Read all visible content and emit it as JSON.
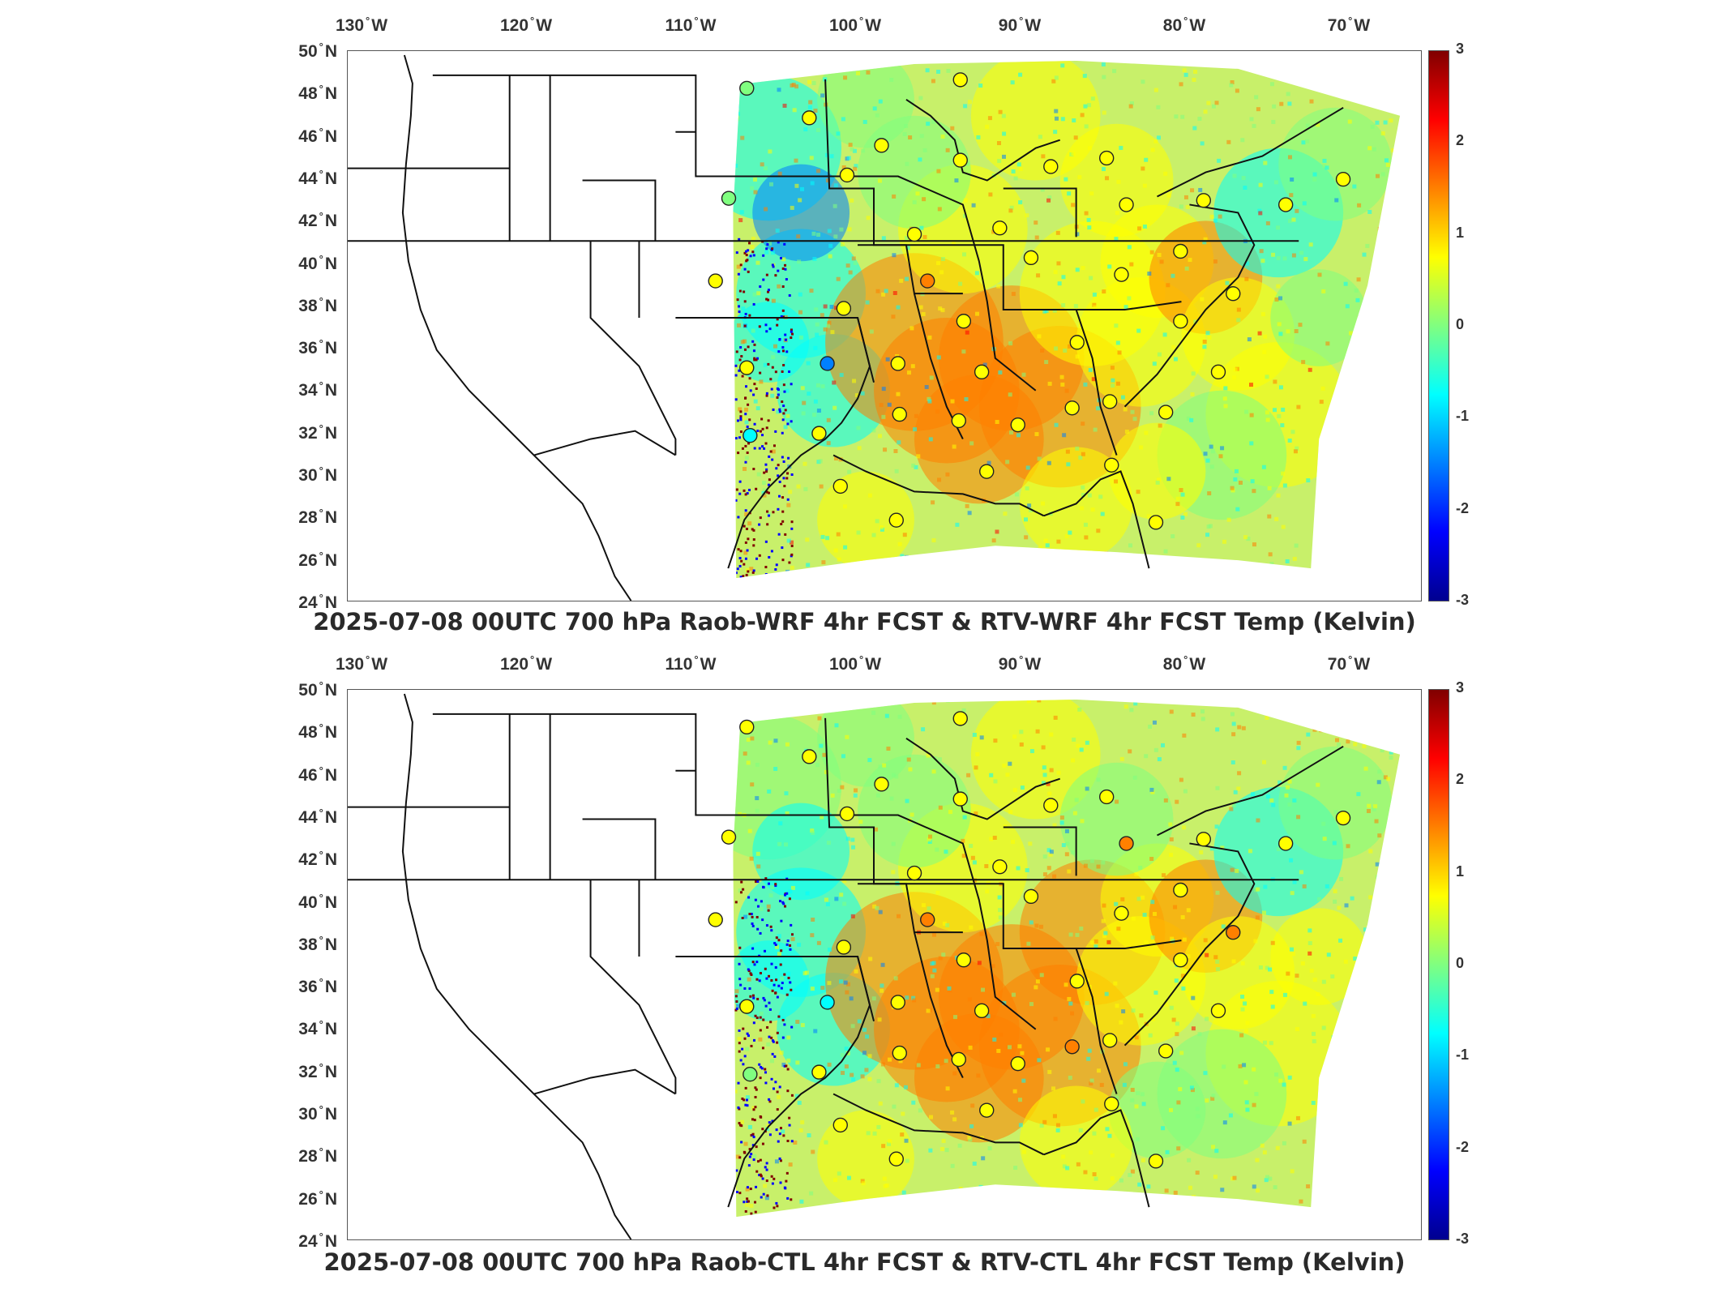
{
  "panels": [
    {
      "title": "2025-07-08 00UTC 700 hPa Raob-WRF 4hr FCST & RTV-WRF 4hr FCST Temp (Kelvin)"
    },
    {
      "title": "2025-07-08 00UTC 700 hPa Raob-CTL 4hr FCST & RTV-CTL 4hr FCST Temp (Kelvin)"
    }
  ],
  "lon_ticks": [
    {
      "deg": "130",
      "hem": "W"
    },
    {
      "deg": "120",
      "hem": "W"
    },
    {
      "deg": "110",
      "hem": "W"
    },
    {
      "deg": "100",
      "hem": "W"
    },
    {
      "deg": "90",
      "hem": "W"
    },
    {
      "deg": "80",
      "hem": "W"
    },
    {
      "deg": "70",
      "hem": "W"
    }
  ],
  "lat_ticks": [
    {
      "deg": "50",
      "hem": "N"
    },
    {
      "deg": "48",
      "hem": "N"
    },
    {
      "deg": "46",
      "hem": "N"
    },
    {
      "deg": "44",
      "hem": "N"
    },
    {
      "deg": "42",
      "hem": "N"
    },
    {
      "deg": "40",
      "hem": "N"
    },
    {
      "deg": "38",
      "hem": "N"
    },
    {
      "deg": "36",
      "hem": "N"
    },
    {
      "deg": "34",
      "hem": "N"
    },
    {
      "deg": "32",
      "hem": "N"
    },
    {
      "deg": "30",
      "hem": "N"
    },
    {
      "deg": "28",
      "hem": "N"
    },
    {
      "deg": "26",
      "hem": "N"
    },
    {
      "deg": "24",
      "hem": "N"
    }
  ],
  "colorbar": {
    "labels": [
      "3",
      "2",
      "1",
      "0",
      "-1",
      "-2",
      "-3"
    ],
    "range": [
      -3,
      3
    ],
    "colors": [
      "#00008f",
      "#0000ff",
      "#0080ff",
      "#00ffff",
      "#80ff80",
      "#ffff00",
      "#ff8000",
      "#ff0000",
      "#800000"
    ]
  },
  "stations": [
    {
      "lon": -106.6,
      "lat": 48.2,
      "v": 0.3
    },
    {
      "lon": -107.7,
      "lat": 43.0,
      "v": 0.3
    },
    {
      "lon": -108.5,
      "lat": 39.1,
      "v": 0.9
    },
    {
      "lon": -106.6,
      "lat": 35.0,
      "v": 0.9
    },
    {
      "lon": -106.4,
      "lat": 31.8,
      "v": -0.4
    },
    {
      "lon": -101.7,
      "lat": 35.2,
      "v": -1.2
    },
    {
      "lon": -102.2,
      "lat": 31.9,
      "v": 0.5
    },
    {
      "lon": -100.9,
      "lat": 29.4,
      "v": 0.4
    },
    {
      "lon": -97.5,
      "lat": 27.8,
      "v": 0.9
    },
    {
      "lon": -97.3,
      "lat": 32.8,
      "v": 1.0
    },
    {
      "lon": -97.4,
      "lat": 35.2,
      "v": 1.0
    },
    {
      "lon": -95.6,
      "lat": 39.1,
      "v": 1.6
    },
    {
      "lon": -100.7,
      "lat": 37.8,
      "v": 0.6
    },
    {
      "lon": -96.4,
      "lat": 41.3,
      "v": 0.9
    },
    {
      "lon": -100.5,
      "lat": 44.1,
      "v": 0.6
    },
    {
      "lon": -98.4,
      "lat": 45.5,
      "v": 0.6
    },
    {
      "lon": -102.8,
      "lat": 46.8,
      "v": 0.8
    },
    {
      "lon": -93.6,
      "lat": 44.8,
      "v": 0.9
    },
    {
      "lon": -91.2,
      "lat": 41.6,
      "v": 0.8
    },
    {
      "lon": -89.3,
      "lat": 40.2,
      "v": 0.9
    },
    {
      "lon": -93.4,
      "lat": 37.2,
      "v": 0.9
    },
    {
      "lon": -92.3,
      "lat": 34.8,
      "v": 1.0
    },
    {
      "lon": -90.1,
      "lat": 32.3,
      "v": 0.9
    },
    {
      "lon": -93.7,
      "lat": 32.5,
      "v": 1.0
    },
    {
      "lon": -92.0,
      "lat": 30.1,
      "v": 0.9
    },
    {
      "lon": -86.5,
      "lat": 36.2,
      "v": 1.0
    },
    {
      "lon": -86.8,
      "lat": 33.1,
      "v": 1.1
    },
    {
      "lon": -84.5,
      "lat": 33.4,
      "v": 1.0
    },
    {
      "lon": -84.4,
      "lat": 30.4,
      "v": 0.9
    },
    {
      "lon": -81.7,
      "lat": 27.7,
      "v": 0.9
    },
    {
      "lon": -81.1,
      "lat": 32.9,
      "v": 0.9
    },
    {
      "lon": -77.9,
      "lat": 34.8,
      "v": 0.9
    },
    {
      "lon": -80.2,
      "lat": 37.2,
      "v": 0.6
    },
    {
      "lon": -83.8,
      "lat": 39.4,
      "v": 0.8
    },
    {
      "lon": -80.2,
      "lat": 40.5,
      "v": 0.8
    },
    {
      "lon": -83.5,
      "lat": 42.7,
      "v": 1.1
    },
    {
      "lon": -84.7,
      "lat": 44.9,
      "v": 0.6
    },
    {
      "lon": -88.1,
      "lat": 44.5,
      "v": 1.0
    },
    {
      "lon": -93.6,
      "lat": 48.6,
      "v": 0.5
    },
    {
      "lon": -78.8,
      "lat": 42.9,
      "v": 0.9
    },
    {
      "lon": -73.8,
      "lat": 42.7,
      "v": 0.8
    },
    {
      "lon": -70.3,
      "lat": 43.9,
      "v": 0.9
    },
    {
      "lon": -77.0,
      "lat": 38.5,
      "v": 1.1
    }
  ]
}
